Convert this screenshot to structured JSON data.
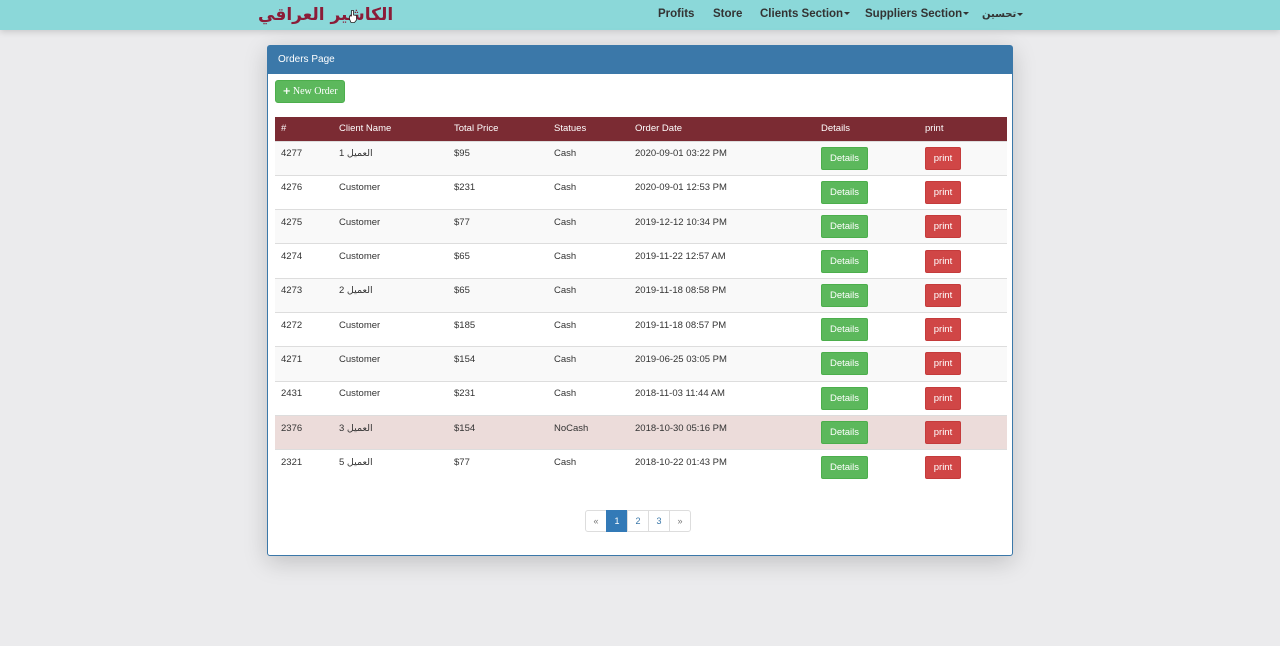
{
  "navbar": {
    "brand": "الكاشير العراقي",
    "items": [
      {
        "label": "Profits",
        "dropdown": false
      },
      {
        "label": "Store",
        "dropdown": false
      },
      {
        "label": "Clients Section",
        "dropdown": true
      },
      {
        "label": "Suppliers Section",
        "dropdown": true
      },
      {
        "label": "تحسين",
        "dropdown": true
      }
    ]
  },
  "panel": {
    "title": "Orders Page",
    "new_order_label": "New Order"
  },
  "table": {
    "headers": [
      "#",
      "Client Name",
      "Total Price",
      "Statues",
      "Order Date",
      "Details",
      "print"
    ],
    "details_label": "Details",
    "print_label": "print",
    "rows": [
      {
        "id": "4277",
        "client": "العميل 1",
        "price": "$95",
        "status": "Cash",
        "date": "2020-09-01 03:22 PM",
        "highlight": false
      },
      {
        "id": "4276",
        "client": "Customer",
        "price": "$231",
        "status": "Cash",
        "date": "2020-09-01 12:53 PM",
        "highlight": false
      },
      {
        "id": "4275",
        "client": "Customer",
        "price": "$77",
        "status": "Cash",
        "date": "2019-12-12 10:34 PM",
        "highlight": false
      },
      {
        "id": "4274",
        "client": "Customer",
        "price": "$65",
        "status": "Cash",
        "date": "2019-11-22 12:57 AM",
        "highlight": false
      },
      {
        "id": "4273",
        "client": "العميل 2",
        "price": "$65",
        "status": "Cash",
        "date": "2019-11-18 08:58 PM",
        "highlight": false
      },
      {
        "id": "4272",
        "client": "Customer",
        "price": "$185",
        "status": "Cash",
        "date": "2019-11-18 08:57 PM",
        "highlight": false
      },
      {
        "id": "4271",
        "client": "Customer",
        "price": "$154",
        "status": "Cash",
        "date": "2019-06-25 03:05 PM",
        "highlight": false
      },
      {
        "id": "2431",
        "client": "Customer",
        "price": "$231",
        "status": "Cash",
        "date": "2018-11-03 11:44 AM",
        "highlight": false
      },
      {
        "id": "2376",
        "client": "العميل 3",
        "price": "$154",
        "status": "NoCash",
        "date": "2018-10-30 05:16 PM",
        "highlight": true
      },
      {
        "id": "2321",
        "client": "العميل 5",
        "price": "$77",
        "status": "Cash",
        "date": "2018-10-22 01:43 PM",
        "highlight": false
      }
    ]
  },
  "pagination": {
    "prev": "«",
    "pages": [
      "1",
      "2",
      "3"
    ],
    "active": "1",
    "next": "»"
  },
  "colors": {
    "navbar": "#8bd8d9",
    "brand": "#8b1c38",
    "panel_header": "#3b78a9",
    "table_header": "#7b2b33",
    "success": "#5cb85c",
    "danger": "#d04646",
    "row_danger": "#ecdcda"
  }
}
